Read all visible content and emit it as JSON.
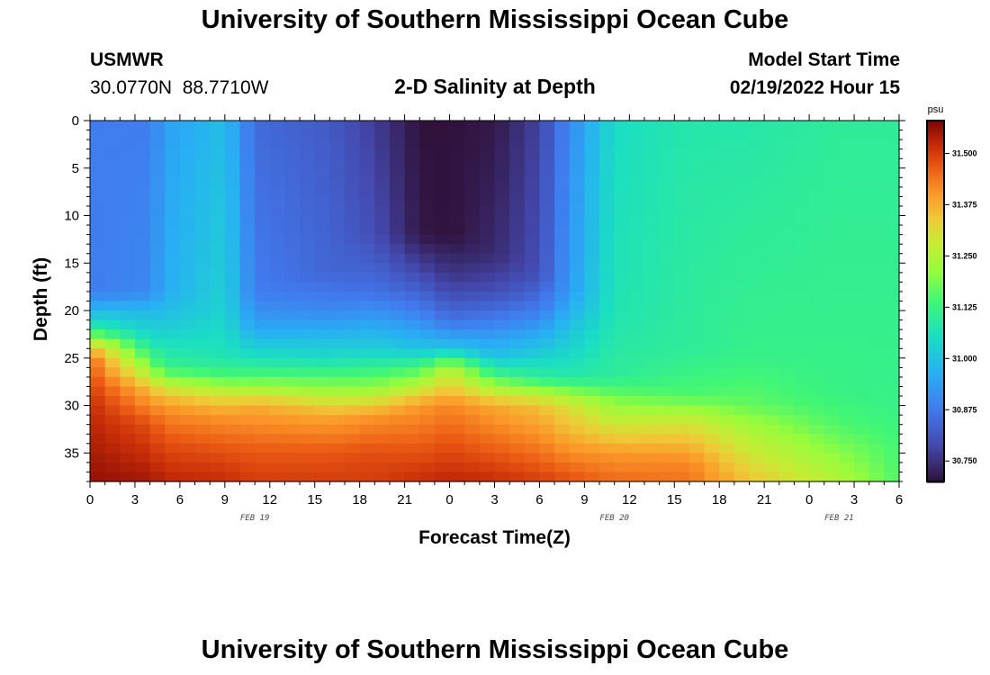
{
  "page": {
    "title": "University of Southern Mississippi Ocean Cube",
    "station_id": "USMWR",
    "station_coords": "30.0770N  88.7710W",
    "chart_title": "2-D Salinity at Depth",
    "start_label": "Model Start Time",
    "start_value": "02/19/2022 Hour 15",
    "bottom_title": "University of Southern Mississippi Ocean Cube"
  },
  "chart_data": {
    "type": "heatmap",
    "title": "2-D Salinity at Depth",
    "xlabel": "Forecast Time(Z)",
    "ylabel": "Depth (ft)",
    "x_tick_labels": [
      "0",
      "3",
      "6",
      "9",
      "12",
      "15",
      "18",
      "21",
      "0",
      "3",
      "6",
      "9",
      "12",
      "15",
      "18",
      "21",
      "0",
      "3",
      "6"
    ],
    "x_range_hours": [
      0,
      54
    ],
    "date_labels": [
      {
        "label": "FEB 19",
        "hour": 11
      },
      {
        "label": "FEB 20",
        "hour": 35
      },
      {
        "label": "FEB 21",
        "hour": 50
      }
    ],
    "y_tick_labels": [
      "0",
      "5",
      "10",
      "15",
      "20",
      "25",
      "30",
      "35"
    ],
    "ylim": [
      0,
      38
    ],
    "y_inverted": true,
    "colorbar": {
      "unit": "psu",
      "min": 30.7,
      "max": 31.58,
      "ticks": [
        "31.500",
        "31.375",
        "31.250",
        "31.125",
        "31.000",
        "30.875",
        "30.750"
      ],
      "colormap": "turbo"
    },
    "profiles": [
      {
        "hour": 0,
        "sal": [
          [
            0,
            30.88
          ],
          [
            18,
            30.88
          ],
          [
            20,
            30.98
          ],
          [
            22,
            31.1
          ],
          [
            23,
            31.25
          ],
          [
            25,
            31.45
          ],
          [
            30,
            31.52
          ],
          [
            38,
            31.56
          ]
        ]
      },
      {
        "hour": 4,
        "sal": [
          [
            0,
            30.88
          ],
          [
            18,
            30.9
          ],
          [
            20,
            30.98
          ],
          [
            23,
            31.05
          ],
          [
            26,
            31.2
          ],
          [
            28,
            31.35
          ],
          [
            32,
            31.48
          ],
          [
            38,
            31.55
          ]
        ]
      },
      {
        "hour": 5,
        "sal": [
          [
            0,
            30.94
          ],
          [
            18,
            30.96
          ],
          [
            22,
            31.02
          ],
          [
            26,
            31.12
          ],
          [
            28,
            31.28
          ],
          [
            30,
            31.4
          ],
          [
            34,
            31.48
          ],
          [
            38,
            31.53
          ]
        ]
      },
      {
        "hour": 9,
        "sal": [
          [
            0,
            30.99
          ],
          [
            20,
            31.03
          ],
          [
            25,
            31.07
          ],
          [
            27,
            31.15
          ],
          [
            29,
            31.3
          ],
          [
            31,
            31.4
          ],
          [
            35,
            31.48
          ],
          [
            38,
            31.52
          ]
        ]
      },
      {
        "hour": 11,
        "sal": [
          [
            0,
            30.85
          ],
          [
            18,
            30.88
          ],
          [
            22,
            30.95
          ],
          [
            26,
            31.1
          ],
          [
            28,
            31.22
          ],
          [
            30,
            31.38
          ],
          [
            35,
            31.47
          ],
          [
            38,
            31.5
          ]
        ]
      },
      {
        "hour": 16,
        "sal": [
          [
            0,
            30.82
          ],
          [
            16,
            30.84
          ],
          [
            20,
            30.9
          ],
          [
            25,
            31.05
          ],
          [
            28,
            31.2
          ],
          [
            31,
            31.38
          ],
          [
            35,
            31.47
          ],
          [
            38,
            31.5
          ]
        ]
      },
      {
        "hour": 19,
        "sal": [
          [
            0,
            30.77
          ],
          [
            12,
            30.8
          ],
          [
            18,
            30.86
          ],
          [
            24,
            31.02
          ],
          [
            28,
            31.2
          ],
          [
            31,
            31.4
          ],
          [
            35,
            31.48
          ],
          [
            38,
            31.5
          ]
        ]
      },
      {
        "hour": 22,
        "sal": [
          [
            0,
            30.7
          ],
          [
            12,
            30.71
          ],
          [
            16,
            30.79
          ],
          [
            20,
            30.88
          ],
          [
            24,
            31.0
          ],
          [
            27,
            31.2
          ],
          [
            30,
            31.4
          ],
          [
            38,
            31.52
          ]
        ]
      },
      {
        "hour": 24,
        "sal": [
          [
            0,
            30.7
          ],
          [
            12,
            30.7
          ],
          [
            17,
            30.77
          ],
          [
            21,
            30.86
          ],
          [
            24,
            31.0
          ],
          [
            26,
            31.25
          ],
          [
            30,
            31.42
          ],
          [
            38,
            31.53
          ]
        ]
      },
      {
        "hour": 27,
        "sal": [
          [
            0,
            30.71
          ],
          [
            14,
            30.74
          ],
          [
            18,
            30.8
          ],
          [
            21,
            30.88
          ],
          [
            25,
            31.0
          ],
          [
            27,
            31.15
          ],
          [
            30,
            31.38
          ],
          [
            38,
            31.52
          ]
        ]
      },
      {
        "hour": 30,
        "sal": [
          [
            0,
            30.78
          ],
          [
            16,
            30.8
          ],
          [
            20,
            30.88
          ],
          [
            24,
            31.0
          ],
          [
            27,
            31.1
          ],
          [
            30,
            31.35
          ],
          [
            38,
            31.5
          ]
        ]
      },
      {
        "hour": 32,
        "sal": [
          [
            0,
            30.9
          ],
          [
            18,
            30.93
          ],
          [
            22,
            31.0
          ],
          [
            27,
            31.08
          ],
          [
            30,
            31.3
          ],
          [
            38,
            31.48
          ]
        ]
      },
      {
        "hour": 35,
        "sal": [
          [
            0,
            31.05
          ],
          [
            20,
            31.07
          ],
          [
            27,
            31.1
          ],
          [
            31,
            31.25
          ],
          [
            35,
            31.4
          ],
          [
            38,
            31.45
          ]
        ]
      },
      {
        "hour": 40,
        "sal": [
          [
            0,
            31.08
          ],
          [
            24,
            31.1
          ],
          [
            29,
            31.15
          ],
          [
            32,
            31.3
          ],
          [
            36,
            31.42
          ],
          [
            38,
            31.44
          ]
        ]
      },
      {
        "hour": 44,
        "sal": [
          [
            0,
            31.08
          ],
          [
            25,
            31.12
          ],
          [
            30,
            31.17
          ],
          [
            33,
            31.25
          ],
          [
            38,
            31.35
          ]
        ]
      },
      {
        "hour": 50,
        "sal": [
          [
            0,
            31.1
          ],
          [
            28,
            31.12
          ],
          [
            32,
            31.15
          ],
          [
            35,
            31.2
          ],
          [
            38,
            31.25
          ]
        ]
      },
      {
        "hour": 54,
        "sal": [
          [
            0,
            31.1
          ],
          [
            30,
            31.12
          ],
          [
            34,
            31.14
          ],
          [
            38,
            31.15
          ]
        ]
      }
    ]
  }
}
